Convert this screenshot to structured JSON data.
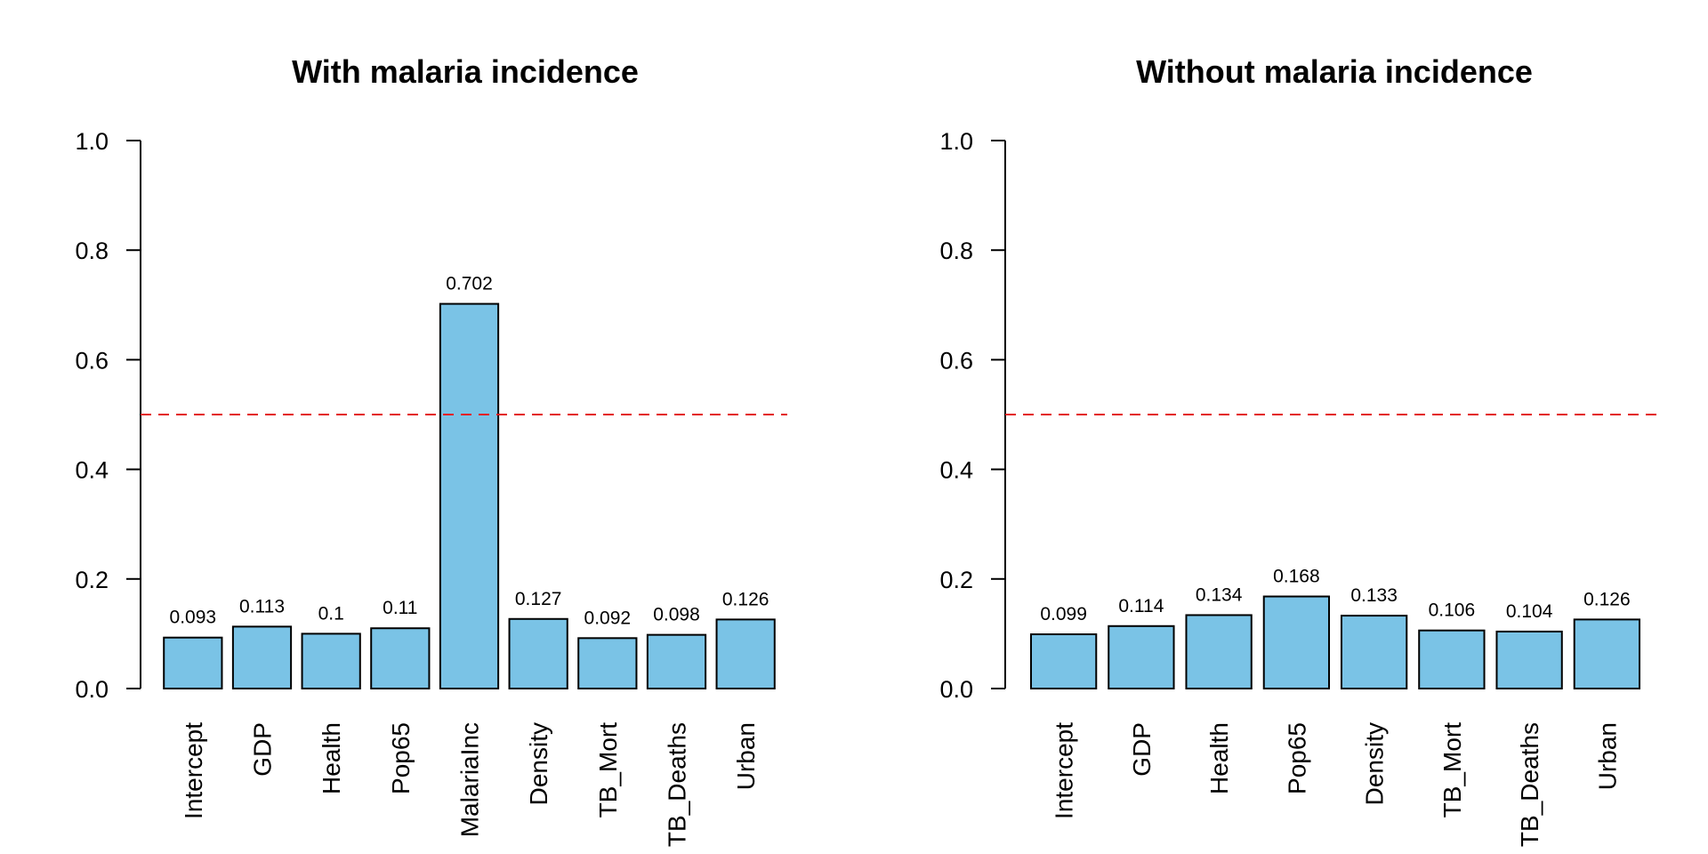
{
  "chart_data": [
    {
      "type": "bar",
      "title": "With malaria incidence",
      "categories": [
        "Intercept",
        "GDP",
        "Health",
        "Pop65",
        "MalariaInc",
        "Density",
        "TB_Mort",
        "TB_Deaths",
        "Urban"
      ],
      "values": [
        0.093,
        0.113,
        0.1,
        0.11,
        0.702,
        0.127,
        0.092,
        0.098,
        0.126
      ],
      "data_labels": [
        "0.093",
        "0.113",
        "0.1",
        "0.11",
        "0.702",
        "0.127",
        "0.092",
        "0.098",
        "0.126"
      ],
      "xlabel": "",
      "ylabel": "",
      "ylim": [
        0,
        1
      ],
      "yticks": [
        "0.0",
        "0.2",
        "0.4",
        "0.6",
        "0.8",
        "1.0"
      ],
      "reference_line": 0.5,
      "bar_color": "#7ac3e6",
      "reference_line_color": "#e31a1c",
      "grid": false
    },
    {
      "type": "bar",
      "title": "Without malaria incidence",
      "categories": [
        "Intercept",
        "GDP",
        "Health",
        "Pop65",
        "Density",
        "TB_Mort",
        "TB_Deaths",
        "Urban"
      ],
      "values": [
        0.099,
        0.114,
        0.134,
        0.168,
        0.133,
        0.106,
        0.104,
        0.126
      ],
      "data_labels": [
        "0.099",
        "0.114",
        "0.134",
        "0.168",
        "0.133",
        "0.106",
        "0.104",
        "0.126"
      ],
      "xlabel": "",
      "ylabel": "",
      "ylim": [
        0,
        1
      ],
      "yticks": [
        "0.0",
        "0.2",
        "0.4",
        "0.6",
        "0.8",
        "1.0"
      ],
      "reference_line": 0.5,
      "bar_color": "#7ac3e6",
      "reference_line_color": "#e31a1c",
      "grid": false
    }
  ]
}
